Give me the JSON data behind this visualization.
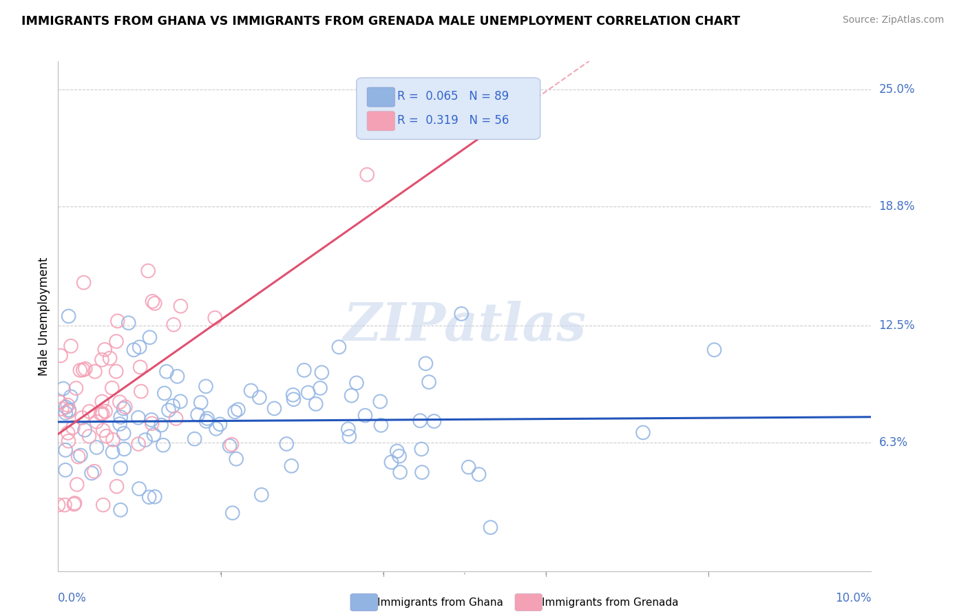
{
  "title": "IMMIGRANTS FROM GHANA VS IMMIGRANTS FROM GRENADA MALE UNEMPLOYMENT CORRELATION CHART",
  "source": "Source: ZipAtlas.com",
  "ylabel": "Male Unemployment",
  "xlim": [
    0.0,
    0.1
  ],
  "ylim": [
    -0.005,
    0.265
  ],
  "ghana_R": 0.065,
  "ghana_N": 89,
  "grenada_R": 0.319,
  "grenada_N": 56,
  "ghana_color": "#92b4e3",
  "grenada_color": "#f4a0b5",
  "ghana_line_color": "#2255bb",
  "grenada_line_color": "#e05070",
  "ytick_vals": [
    0.063,
    0.125,
    0.188,
    0.25
  ],
  "ytick_labels": [
    "6.3%",
    "12.5%",
    "18.8%",
    "25.0%"
  ],
  "legend_box_color": "#dde8f8"
}
